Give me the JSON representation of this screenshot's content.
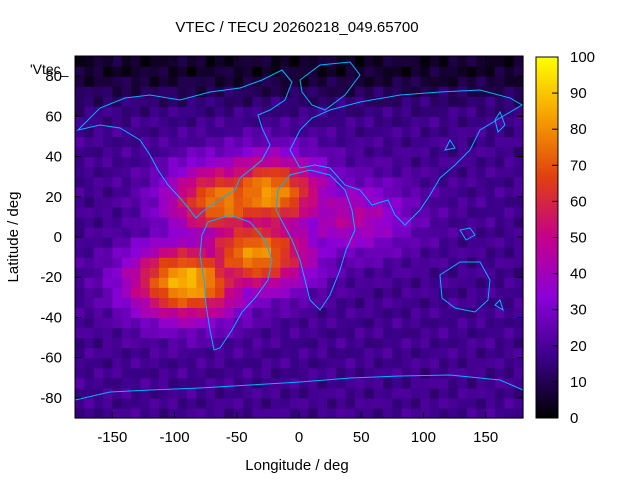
{
  "chart_data": {
    "type": "heatmap",
    "title": "VTEC / TECU 20260218_049.65700",
    "xlabel": "Longitude / deg",
    "ylabel": "Latitude / deg",
    "legend_label": "'Vtec_",
    "xlim": [
      -180,
      180
    ],
    "ylim": [
      -90,
      90
    ],
    "x_ticks": [
      -150,
      -100,
      -50,
      0,
      50,
      100,
      150
    ],
    "y_ticks": [
      -80,
      -60,
      -40,
      -20,
      0,
      20,
      40,
      60,
      80
    ],
    "colorbar": {
      "range": [
        0,
        100
      ],
      "ticks": [
        0,
        10,
        20,
        30,
        40,
        50,
        60,
        70,
        80,
        90,
        100
      ],
      "palette": [
        "#000000",
        "#3a0088",
        "#8a00d8",
        "#c4008a",
        "#e04010",
        "#f6a000",
        "#ffff00"
      ]
    },
    "field_features": [
      {
        "name": "background",
        "tecu": 18
      },
      {
        "name": "equatorial-anomaly-north",
        "lon": -60,
        "lat": 18,
        "tecu": 78
      },
      {
        "name": "equatorial-anomaly-south",
        "lon": -90,
        "lat": -22,
        "tecu": 88
      },
      {
        "name": "peak-south-atlantic",
        "lon": -35,
        "lat": -8,
        "tecu": 80
      },
      {
        "name": "peak-north-atlantic",
        "lon": -25,
        "lat": 22,
        "tecu": 82
      },
      {
        "name": "tail-africa",
        "lon": 40,
        "lat": 10,
        "tecu": 45
      },
      {
        "name": "polar-low-north",
        "lat": 85,
        "tecu": 5
      }
    ]
  },
  "colors": {
    "coastline": "#00b4ff",
    "axis": "#000000"
  }
}
